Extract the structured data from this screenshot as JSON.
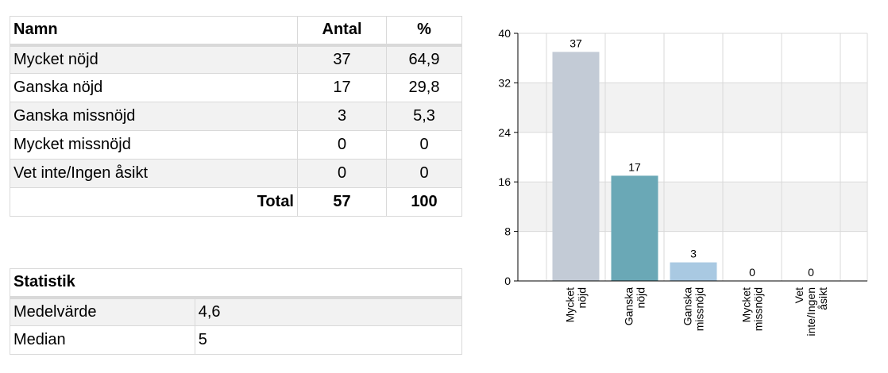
{
  "table": {
    "headers": [
      "Namn",
      "Antal",
      "%"
    ],
    "rows": [
      [
        "Mycket nöjd",
        "37",
        "64,9"
      ],
      [
        "Ganska nöjd",
        "17",
        "29,8"
      ],
      [
        "Ganska missnöjd",
        "3",
        "5,3"
      ],
      [
        "Mycket missnöjd",
        "0",
        "0"
      ],
      [
        "Vet inte/Ingen åsikt",
        "0",
        "0"
      ]
    ],
    "total": [
      "Total",
      "57",
      "100"
    ]
  },
  "stats": {
    "title": "Statistik",
    "rows": [
      [
        "Medelvärde",
        "4,6"
      ],
      [
        "Median",
        "5"
      ]
    ]
  },
  "chart_data": {
    "type": "bar",
    "categories": [
      [
        "Mycket",
        "nöjd"
      ],
      [
        "Ganska",
        "nöjd"
      ],
      [
        "Ganska",
        "missnöjd"
      ],
      [
        "Mycket",
        "missnöjd"
      ],
      [
        "Vet",
        "inte/Ingen",
        "åsikt"
      ]
    ],
    "values": [
      37,
      17,
      3,
      0,
      0
    ],
    "bar_colors": [
      "#c3cbd6",
      "#6aa8b6",
      "#a9c9e2",
      "#c3cbd6",
      "#c3cbd6"
    ],
    "ylim": [
      0,
      40
    ],
    "yticks": [
      0,
      8,
      16,
      24,
      32,
      40
    ],
    "grid": true,
    "band_color": "#f2f2f2",
    "data_labels": true
  }
}
